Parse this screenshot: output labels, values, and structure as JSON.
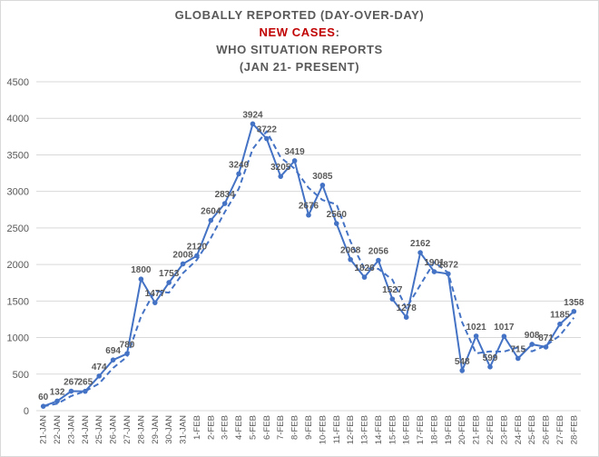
{
  "title": {
    "line1": "GLOBALLY REPORTED (DAY-OVER-DAY)",
    "line2_accent": "NEW CASES",
    "line2_suffix": ":",
    "line3": "WHO SITUATION REPORTS",
    "line4": "(JAN 21- PRESENT)"
  },
  "colors": {
    "series": "#4472c4",
    "accent_title": "#c00000",
    "text": "#595959",
    "grid": "#d9d9d9"
  },
  "chart_data": {
    "type": "line",
    "title": "GLOBALLY REPORTED (DAY-OVER-DAY) NEW CASES: WHO SITUATION REPORTS (JAN 21- PRESENT)",
    "xlabel": "",
    "ylabel": "",
    "ylim": [
      0,
      4500
    ],
    "yticks": [
      0,
      500,
      1000,
      1500,
      2000,
      2500,
      3000,
      3500,
      4000,
      4500
    ],
    "grid": true,
    "legend": "none",
    "categories": [
      "21-JAN",
      "22-JAN",
      "23-JAN",
      "24-JAN",
      "25-JAN",
      "26-JAN",
      "27-JAN",
      "28-JAN",
      "29-JAN",
      "30-JAN",
      "31-JAN",
      "1-FEB",
      "2-FEB",
      "3-FEB",
      "4-FEB",
      "5-FEB",
      "6-FEB",
      "7-FEB",
      "8-FEB",
      "9-FEB",
      "10-FEB",
      "11-FEB",
      "12-FEB",
      "13-FEB",
      "14-FEB",
      "15-FEB",
      "16-FEB",
      "17-FEB",
      "18-FEB",
      "19-FEB",
      "20-FEB",
      "21-FEB",
      "22-FEB",
      "23-FEB",
      "24-FEB",
      "25-FEB",
      "26-FEB",
      "27-FEB",
      "28-FEB"
    ],
    "series": [
      {
        "name": "",
        "style": "solid-markers",
        "values": [
          60,
          132,
          267,
          265,
          474,
          694,
          780,
          1800,
          1477,
          1753,
          2008,
          2120,
          2604,
          2834,
          3240,
          3924,
          3722,
          3205,
          3419,
          2676,
          3085,
          2560,
          2068,
          1826,
          2056,
          1527,
          1278,
          2162,
          1901,
          1872,
          548,
          1021,
          599,
          1017,
          715,
          908,
          871,
          1185,
          1358
        ],
        "labels": [
          "60",
          "132",
          "267",
          "265",
          "474",
          "694",
          "780",
          "1800",
          "1477",
          "1753",
          "2008",
          "2120",
          "2604",
          "2834",
          "3240",
          "3924",
          "3722",
          "3205",
          "3419",
          "2676",
          "3085",
          "2560",
          "2068",
          "1826",
          "2056",
          "1527",
          "1278",
          "2162",
          "1901",
          "1872",
          "548",
          "1021",
          "599",
          "1017",
          "715",
          "908",
          "871",
          "1185",
          "1358"
        ]
      },
      {
        "name": "",
        "style": "dashed-trend",
        "values": [
          60,
          96,
          200,
          266,
          370,
          584,
          737,
          1290,
          1639,
          1615,
          1881,
          2064,
          2362,
          2719,
          3037,
          3582,
          3823,
          3464,
          3312,
          3048,
          2881,
          2823,
          2314,
          1947,
          1941,
          1792,
          1403,
          1720,
          2032,
          1887,
          1210,
          785,
          810,
          808,
          866,
          812,
          890,
          1028,
          1272
        ]
      }
    ]
  }
}
